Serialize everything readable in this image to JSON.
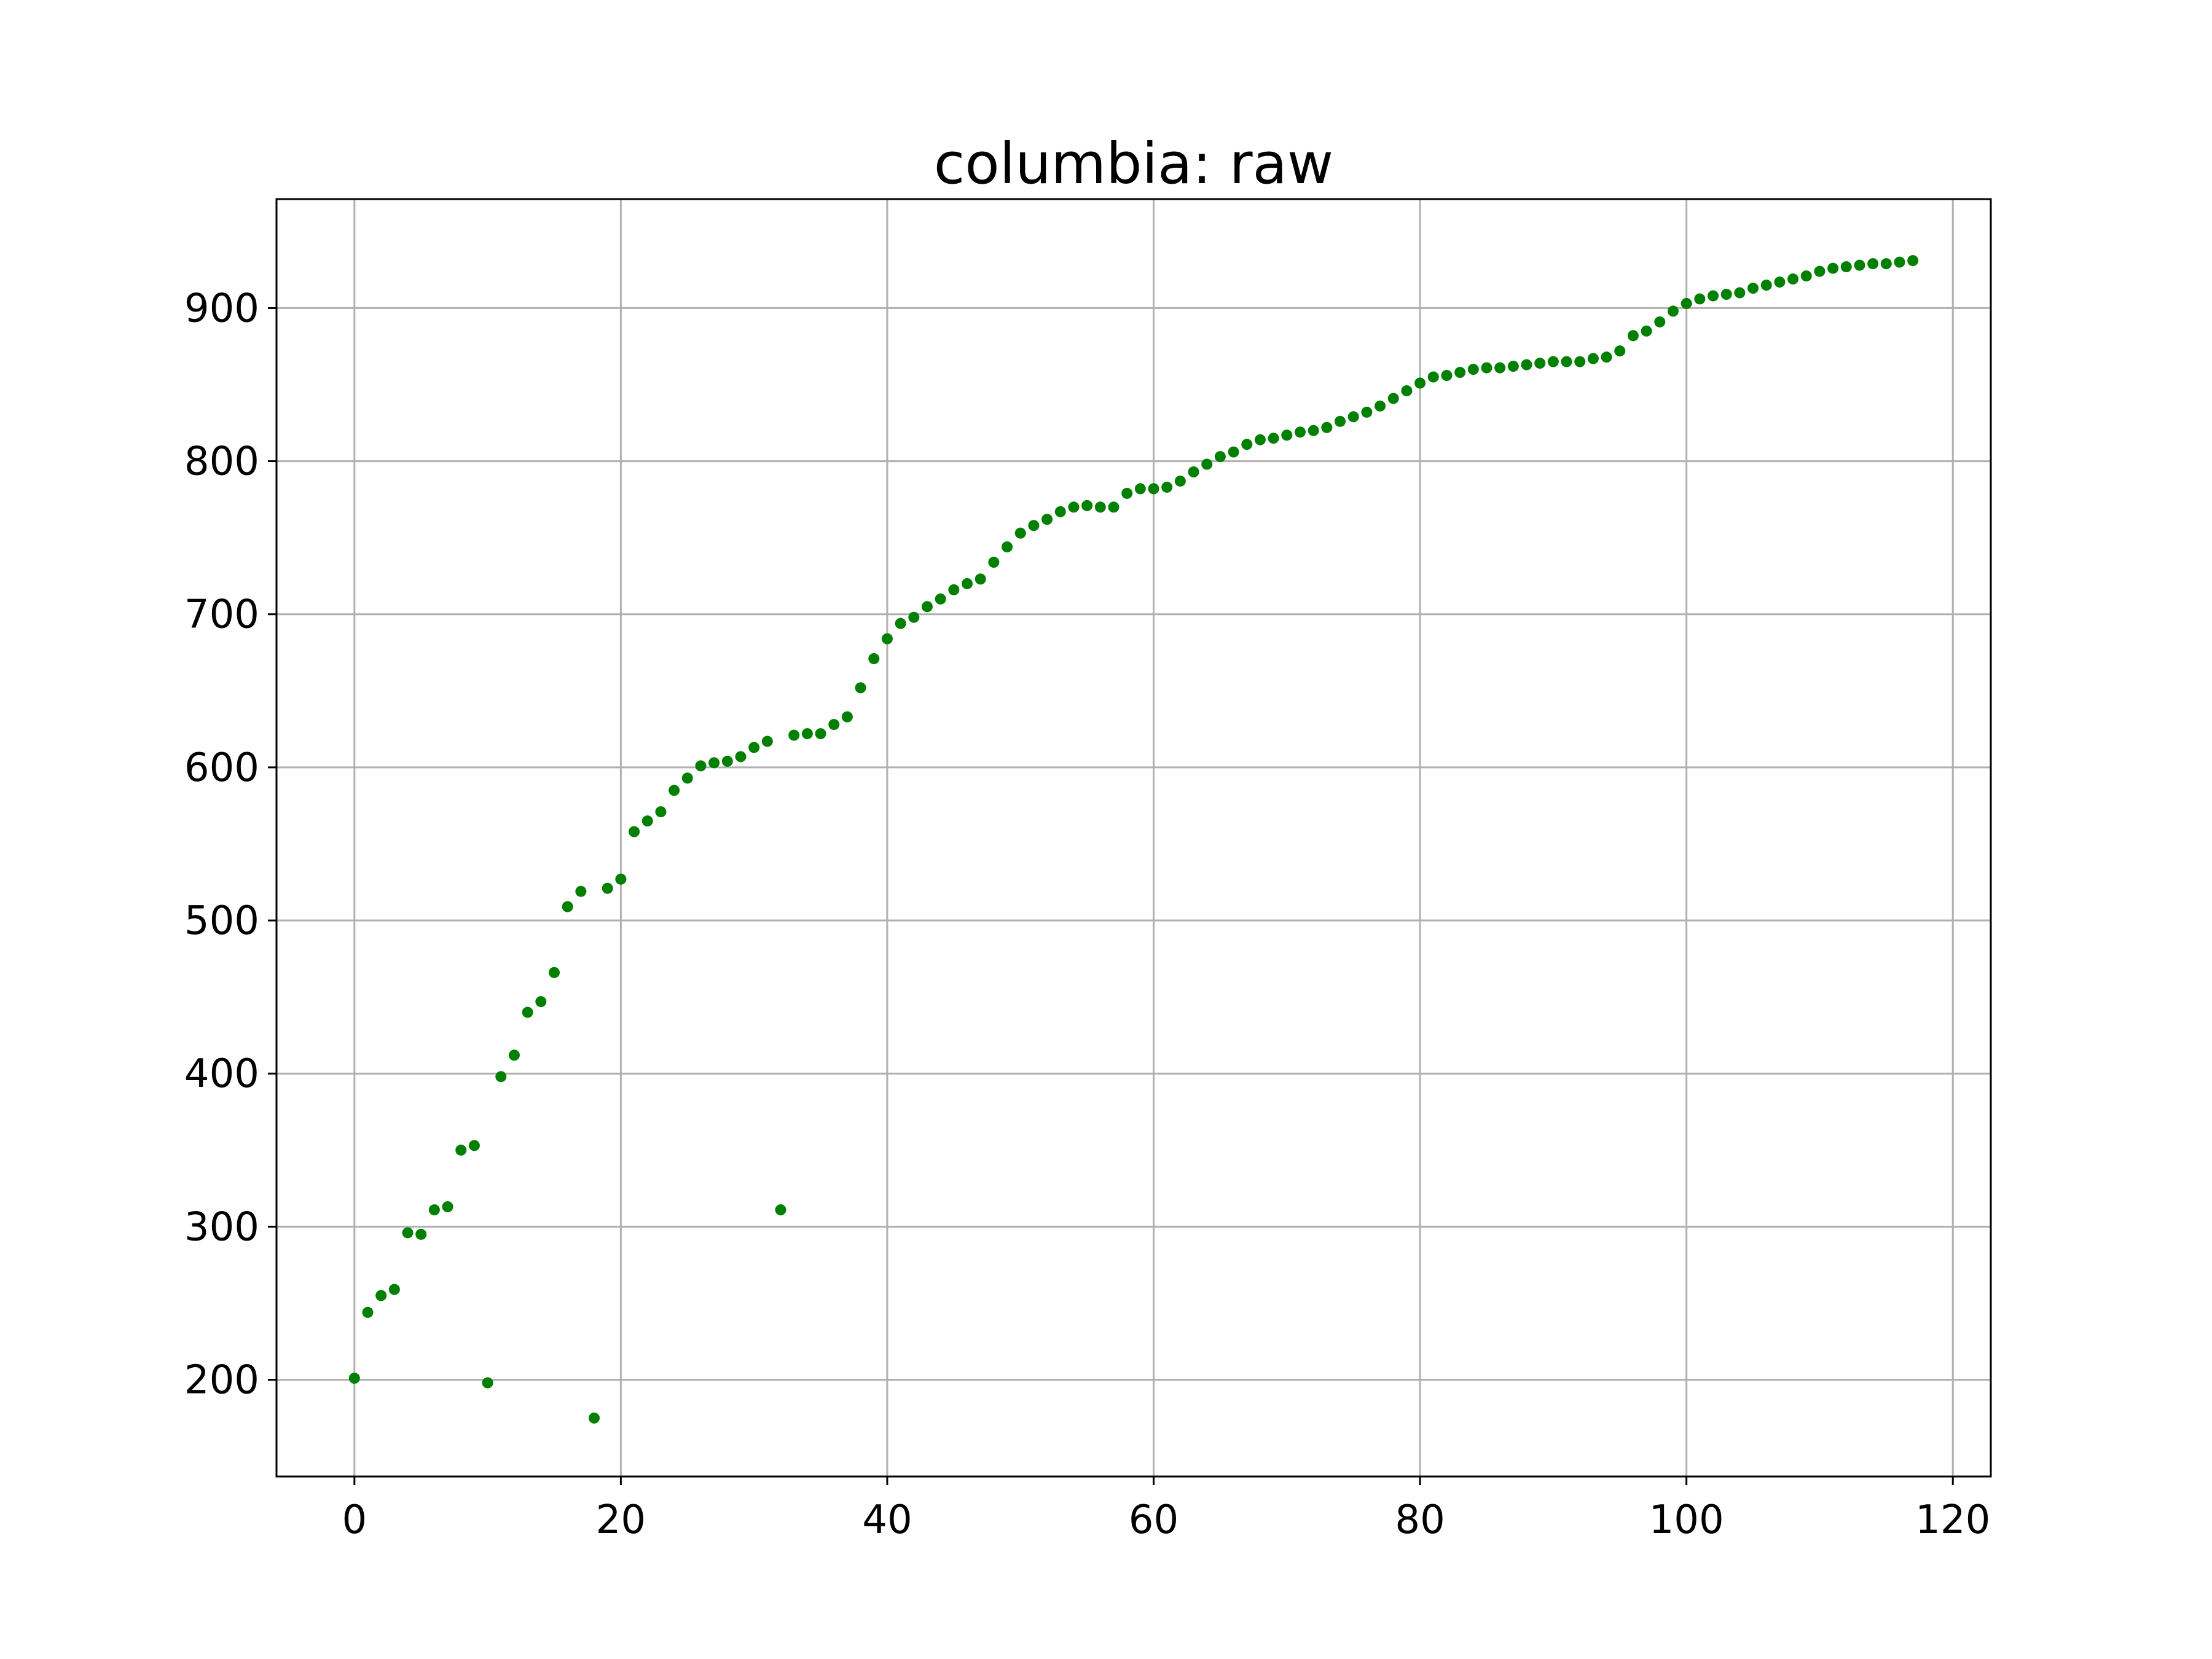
{
  "chart_data": {
    "type": "scatter",
    "title": "columbia: raw",
    "xlabel": "",
    "ylabel": "",
    "xlim": [
      -5.85,
      122.85
    ],
    "ylim": [
      136.8,
      971.2
    ],
    "xticks": [
      0,
      20,
      40,
      60,
      80,
      100,
      120
    ],
    "yticks": [
      200,
      300,
      400,
      500,
      600,
      700,
      800,
      900
    ],
    "xtick_labels": [
      "0",
      "20",
      "40",
      "60",
      "80",
      "100",
      "120"
    ],
    "ytick_labels": [
      "200",
      "300",
      "400",
      "500",
      "600",
      "700",
      "800",
      "900"
    ],
    "grid": true,
    "marker_color": "#008000",
    "series": [
      {
        "x": [
          0,
          1,
          2,
          3,
          4,
          5,
          6,
          7,
          8,
          9,
          10,
          11,
          12,
          13,
          14,
          15,
          16,
          17,
          18,
          19,
          20,
          21,
          22,
          23,
          24,
          25,
          26,
          27,
          28,
          29,
          30,
          31,
          32,
          33,
          34,
          35,
          36,
          37,
          38,
          39,
          40,
          41,
          42,
          43,
          44,
          45,
          46,
          47,
          48,
          49,
          50,
          51,
          52,
          53,
          54,
          55,
          56,
          57,
          58,
          59,
          60,
          61,
          62,
          63,
          64,
          65,
          66,
          67,
          68,
          69,
          70,
          71,
          72,
          73,
          74,
          75,
          76,
          77,
          78,
          79,
          80,
          81,
          82,
          83,
          84,
          85,
          86,
          87,
          88,
          89,
          90,
          91,
          92,
          93,
          94,
          95,
          96,
          97,
          98,
          99,
          100,
          101,
          102,
          103,
          104,
          105,
          106,
          107,
          108,
          109,
          110,
          111,
          112,
          113,
          114,
          115,
          116,
          117
        ],
        "y": [
          201,
          244,
          255,
          259,
          296,
          295,
          311,
          313,
          350,
          353,
          198,
          398,
          412,
          440,
          447,
          466,
          509,
          519,
          175,
          521,
          527,
          558,
          565,
          571,
          585,
          593,
          601,
          603,
          604,
          607,
          613,
          617,
          311,
          621,
          622,
          622,
          628,
          633,
          652,
          671,
          684,
          694,
          698,
          705,
          710,
          716,
          720,
          723,
          734,
          744,
          753,
          758,
          762,
          767,
          770,
          771,
          770,
          770,
          779,
          782,
          782,
          783,
          787,
          793,
          798,
          803,
          806,
          811,
          814,
          815,
          817,
          819,
          820,
          822,
          826,
          829,
          832,
          836,
          841,
          846,
          851,
          855,
          856,
          858,
          860,
          861,
          861,
          862,
          863,
          864,
          865,
          865,
          865,
          867,
          868,
          872,
          882,
          885,
          891,
          898,
          903,
          906,
          908,
          909,
          910,
          913,
          915,
          917,
          919,
          921,
          924,
          926,
          927,
          928,
          929,
          929,
          930,
          931
        ]
      }
    ]
  }
}
